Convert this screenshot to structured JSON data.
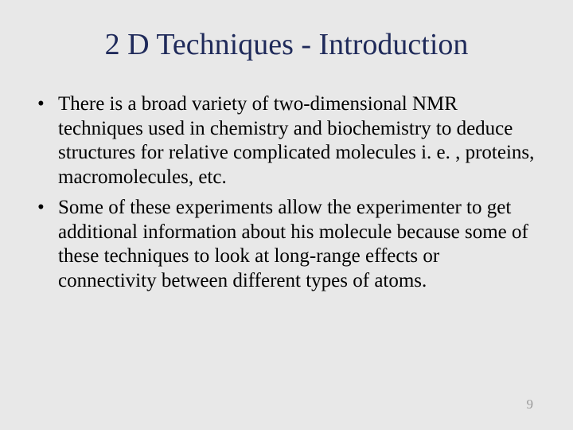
{
  "slide": {
    "title": "2 D Techniques - Introduction",
    "bullets": [
      "There is a broad variety of two-dimensional NMR techniques used in chemistry and biochemistry to deduce structures for relative complicated molecules i. e. , proteins, macromolecules, etc.",
      "Some of these experiments allow the experimenter to get additional information about his molecule because some of these techniques to look at long-range effects or connectivity between different types of atoms."
    ],
    "page_number": "9"
  },
  "style": {
    "background_color": "#e8e8e8",
    "title_color": "#1f2a5a",
    "body_color": "#000000",
    "page_number_color": "#9a9a9a",
    "title_fontsize": 38,
    "body_fontsize": 25,
    "font_family": "Times New Roman"
  }
}
